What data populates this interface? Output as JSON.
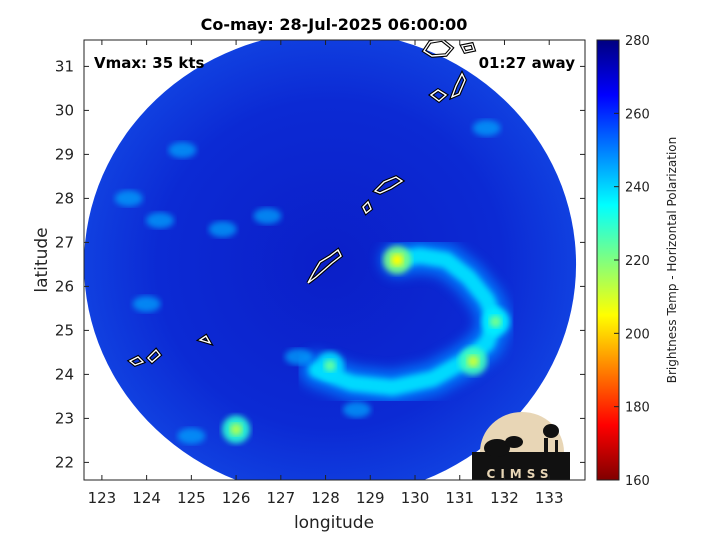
{
  "chart_data": {
    "type": "heatmap",
    "title": "Co-may: 28-Jul-2025 06:00:00",
    "xlabel": "longitude",
    "ylabel": "latitude",
    "xlim": [
      122.6,
      133.8
    ],
    "ylim": [
      21.6,
      31.6
    ],
    "xticks": [
      123,
      124,
      125,
      126,
      127,
      128,
      129,
      130,
      131,
      132,
      133
    ],
    "yticks": [
      22,
      23,
      24,
      25,
      26,
      27,
      28,
      29,
      30,
      31
    ],
    "annotations": {
      "vmax": "Vmax: 35 kts",
      "time_offset": "01:27 away"
    },
    "colorbar": {
      "label": "Brightness Temp - Horizontal Polarization",
      "range": [
        160,
        280
      ],
      "ticks": [
        160,
        180,
        200,
        220,
        240,
        260,
        280
      ],
      "colormap": "jet"
    },
    "swath": {
      "center": [
        128.1,
        26.5
      ],
      "radius_lon": 5.5,
      "radius_lat": 5.3,
      "background_value": 262
    },
    "features": [
      {
        "name": "convective band",
        "points": [
          [
            129.6,
            26.6
          ],
          [
            130.1,
            26.7
          ],
          [
            130.7,
            26.6
          ],
          [
            131.2,
            26.2
          ],
          [
            131.6,
            25.7
          ],
          [
            131.8,
            25.2
          ],
          [
            131.6,
            24.7
          ],
          [
            131.1,
            24.3
          ],
          [
            130.4,
            23.9
          ],
          [
            129.5,
            23.7
          ],
          [
            128.6,
            23.8
          ],
          [
            127.8,
            24.1
          ]
        ],
        "value": 238
      },
      {
        "name": "cold cloud 1",
        "center": [
          129.6,
          26.6
        ],
        "value": 205
      },
      {
        "name": "cold cloud 2",
        "center": [
          131.3,
          24.3
        ],
        "value": 212
      },
      {
        "name": "cold cloud 3",
        "center": [
          126.0,
          22.75
        ],
        "value": 215
      },
      {
        "name": "cold cloud 4",
        "center": [
          131.8,
          25.2
        ],
        "value": 222
      },
      {
        "name": "cold cloud 5",
        "center": [
          128.1,
          24.2
        ],
        "value": 224
      }
    ],
    "logo": "CIMSS"
  }
}
